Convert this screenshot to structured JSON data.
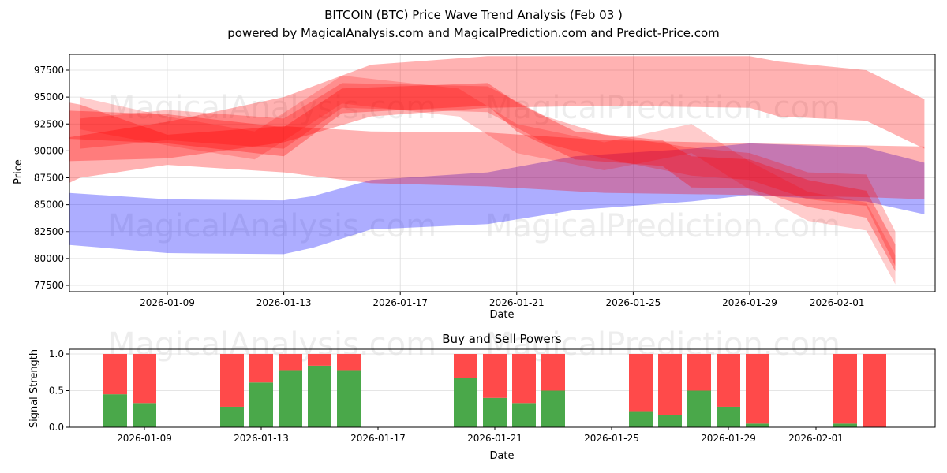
{
  "chart_data": [
    {
      "type": "area",
      "title": "BITCOIN (BTC) Price Wave Trend Analysis (Feb 03 )",
      "subtitle": "powered by MagicalAnalysis.com and MagicalPrediction.com and Predict-Price.com",
      "xlabel": "Date",
      "ylabel": "Price",
      "xlim": [
        "2026-01-05",
        "2026-02-04"
      ],
      "ylim": [
        77000,
        99000
      ],
      "x_ticks": [
        "2026-01-09",
        "2026-01-13",
        "2026-01-17",
        "2026-01-21",
        "2026-01-25",
        "2026-01-29",
        "2026-02-01"
      ],
      "y_ticks": [
        77500,
        80000,
        82500,
        85000,
        87500,
        90000,
        92500,
        95000,
        97500
      ],
      "grid": true,
      "bands": [
        {
          "name": "blue-band",
          "color": "#0000ff",
          "opacity": 0.32,
          "x": [
            "2026-01-05",
            "2026-01-09",
            "2026-01-13",
            "2026-01-14",
            "2026-01-16",
            "2026-01-20",
            "2026-01-23",
            "2026-01-27",
            "2026-01-29",
            "2026-02-02",
            "2026-02-04"
          ],
          "upper": [
            86200,
            85500,
            85400,
            85800,
            87300,
            88000,
            89500,
            90200,
            90700,
            90300,
            88900
          ],
          "lower": [
            81400,
            80500,
            80400,
            81000,
            82700,
            83200,
            84500,
            85300,
            85900,
            85300,
            84100
          ]
        },
        {
          "name": "red-band-upper",
          "color": "#ff0000",
          "opacity": 0.3,
          "x": [
            "2026-01-05",
            "2026-01-09",
            "2026-01-13",
            "2026-01-16",
            "2026-01-20",
            "2026-01-24",
            "2026-01-29",
            "2026-01-30",
            "2026-02-02",
            "2026-02-04"
          ],
          "upper": [
            91000,
            92700,
            95000,
            98000,
            98800,
            98800,
            98800,
            98300,
            97500,
            94800
          ],
          "lower": [
            89000,
            89300,
            90800,
            93200,
            94000,
            94200,
            94000,
            93200,
            92800,
            90200
          ]
        },
        {
          "name": "red-band-lower",
          "color": "#ff0000",
          "opacity": 0.3,
          "x": [
            "2026-01-05",
            "2026-01-06",
            "2026-01-09",
            "2026-01-13",
            "2026-01-16",
            "2026-01-20",
            "2026-01-24",
            "2026-01-29",
            "2026-02-02",
            "2026-02-04"
          ],
          "upper": [
            94800,
            94300,
            91500,
            92300,
            91800,
            91700,
            91000,
            90700,
            90500,
            90400
          ],
          "lower": [
            86200,
            87500,
            88700,
            88000,
            87000,
            86700,
            86100,
            85900,
            85700,
            85500
          ]
        },
        {
          "name": "red-wave-1",
          "color": "#ff0000",
          "opacity": 0.3,
          "x": [
            "2026-01-05",
            "2026-01-09",
            "2026-01-13",
            "2026-01-15",
            "2026-01-20",
            "2026-01-21",
            "2026-01-23",
            "2026-01-26",
            "2026-01-27",
            "2026-01-29",
            "2026-01-31",
            "2026-02-02",
            "2026-02-03"
          ],
          "upper": [
            93800,
            93400,
            92200,
            95800,
            96300,
            94500,
            91800,
            91000,
            89500,
            89200,
            87300,
            86300,
            81300
          ],
          "lower": [
            91200,
            90700,
            89500,
            93500,
            94200,
            91800,
            89200,
            88600,
            86600,
            86500,
            84800,
            83800,
            78800
          ]
        },
        {
          "name": "red-wave-2",
          "color": "#ff0000",
          "opacity": 0.25,
          "x": [
            "2026-01-06",
            "2026-01-09",
            "2026-01-13",
            "2026-01-15",
            "2026-01-20",
            "2026-01-22",
            "2026-01-24",
            "2026-01-27",
            "2026-01-29",
            "2026-01-31",
            "2026-02-02",
            "2026-02-03"
          ],
          "upper": [
            93000,
            93800,
            93000,
            96300,
            96000,
            93200,
            91500,
            90300,
            89800,
            88000,
            87800,
            82500
          ],
          "lower": [
            90200,
            91000,
            90200,
            94000,
            93600,
            90700,
            89300,
            87700,
            87300,
            85500,
            84900,
            79300
          ]
        },
        {
          "name": "red-wave-3",
          "color": "#ff0000",
          "opacity": 0.2,
          "x": [
            "2026-01-06",
            "2026-01-09",
            "2026-01-12",
            "2026-01-15",
            "2026-01-19",
            "2026-01-21",
            "2026-01-24",
            "2026-01-27",
            "2026-01-29",
            "2026-01-31",
            "2026-02-02",
            "2026-02-03"
          ],
          "upper": [
            95000,
            93200,
            91800,
            97000,
            95800,
            92500,
            90800,
            92500,
            89000,
            86200,
            85200,
            80300
          ],
          "lower": [
            92000,
            90500,
            89200,
            94400,
            93200,
            89800,
            88200,
            89800,
            86400,
            83500,
            82600,
            77600
          ]
        }
      ]
    },
    {
      "type": "bar",
      "title": "Buy and Sell Powers",
      "xlabel": "Date",
      "ylabel": "Signal Strength",
      "ylim": [
        0,
        1.05
      ],
      "y_ticks": [
        0.0,
        0.5,
        1.0
      ],
      "x_ticks": [
        "2026-01-09",
        "2026-01-13",
        "2026-01-17",
        "2026-01-21",
        "2026-01-25",
        "2026-01-29",
        "2026-02-01"
      ],
      "categories": [
        "2026-01-08",
        "2026-01-09",
        "2026-01-12",
        "2026-01-13",
        "2026-01-14",
        "2026-01-15",
        "2026-01-16",
        "2026-01-20",
        "2026-01-21",
        "2026-01-22",
        "2026-01-23",
        "2026-01-26",
        "2026-01-27",
        "2026-01-28",
        "2026-01-29",
        "2026-01-30",
        "2026-02-02",
        "2026-02-03"
      ],
      "series": [
        {
          "name": "Buy",
          "color": "#4aa84a",
          "values": [
            0.45,
            0.33,
            0.28,
            0.61,
            0.78,
            0.84,
            0.78,
            0.67,
            0.4,
            0.33,
            0.5,
            0.22,
            0.17,
            0.5,
            0.28,
            0.05,
            0.05,
            0.0
          ]
        },
        {
          "name": "Sell",
          "color": "#ff4a4a",
          "values": [
            0.55,
            0.67,
            0.72,
            0.39,
            0.22,
            0.16,
            0.22,
            0.33,
            0.6,
            0.67,
            0.5,
            0.78,
            0.83,
            0.5,
            0.72,
            0.95,
            0.95,
            1.0
          ]
        }
      ]
    }
  ],
  "watermarks": [
    "MagicalAnalysis.com",
    "MagicalPrediction.com"
  ]
}
